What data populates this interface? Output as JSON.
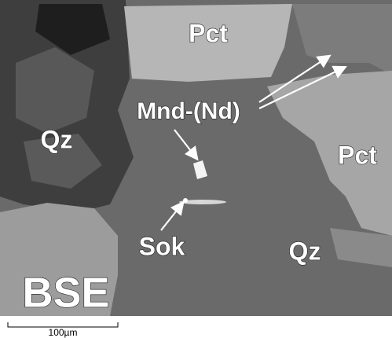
{
  "labels": [
    "Pct",
    "Mnd-(Nd)",
    "Qz",
    "Pct",
    "Sok",
    "Qz"
  ],
  "mode_label": "BSE",
  "scale_bar": {
    "label": "100µm"
  }
}
